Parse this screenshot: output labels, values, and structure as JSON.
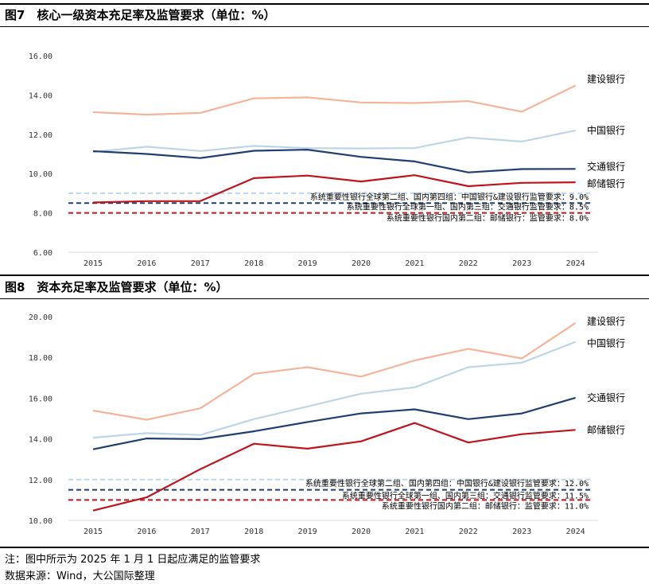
{
  "figures": [
    {
      "title": "图7　核心一级资本充足率及监管要求（单位：%）",
      "chart_data": {
        "type": "line",
        "title": "核心一级资本充足率及监管要求（单位：%）",
        "xlabel": "",
        "ylabel": "",
        "categories": [
          "2015",
          "2016",
          "2017",
          "2018",
          "2019",
          "2020",
          "2021",
          "2022",
          "2023",
          "2024"
        ],
        "ylim": [
          6,
          16
        ],
        "yticks": [
          "6.00",
          "8.00",
          "10.00",
          "12.00",
          "14.00",
          "16.00"
        ],
        "grid": false,
        "series": [
          {
            "name": "建设银行",
            "color": "#f5b49a",
            "values": [
              13.13,
              13.0,
              13.09,
              13.83,
              13.88,
              13.62,
              13.59,
              13.69,
              13.15,
              14.48
            ]
          },
          {
            "name": "中国银行",
            "color": "#bcd6e6",
            "values": [
              11.1,
              11.37,
              11.15,
              11.41,
              11.3,
              11.28,
              11.3,
              11.84,
              11.63,
              12.2
            ]
          },
          {
            "name": "交通银行",
            "color": "#1f3f73",
            "values": [
              11.14,
              11.0,
              10.79,
              11.16,
              11.22,
              10.85,
              10.62,
              10.06,
              10.23,
              10.24
            ]
          },
          {
            "name": "邮储银行",
            "color": "#c0141c",
            "values": [
              8.53,
              8.6,
              8.6,
              9.77,
              9.9,
              9.6,
              9.92,
              9.36,
              9.53,
              9.56
            ]
          }
        ],
        "requirements": [
          {
            "label": "系统重要性银行全球第二组、国内第四组：中国银行&建设银行监管要求：9.0%",
            "value": 9.0,
            "color": "#bcd6e6"
          },
          {
            "label": "系统重要性银行全球第一组、国内第三组：交通银行监管要求：8.5%",
            "value": 8.5,
            "color": "#1f3f73"
          },
          {
            "label": "系统重要性银行国内第二组：邮储银行：监管要求：8.0%",
            "value": 8.0,
            "color": "#c0141c"
          }
        ]
      }
    },
    {
      "title": "图8　资本充足率及监管要求（单位：%）",
      "chart_data": {
        "type": "line",
        "title": "资本充足率及监管要求（单位：%）",
        "xlabel": "",
        "ylabel": "",
        "categories": [
          "2015",
          "2016",
          "2017",
          "2018",
          "2019",
          "2020",
          "2021",
          "2022",
          "2023",
          "2024"
        ],
        "ylim": [
          10,
          20
        ],
        "yticks": [
          "10.00",
          "12.00",
          "14.00",
          "16.00",
          "18.00",
          "20.00"
        ],
        "grid": false,
        "series": [
          {
            "name": "建设银行",
            "color": "#f5b49a",
            "values": [
              15.39,
              14.94,
              15.5,
              17.19,
              17.52,
              17.06,
              17.85,
              18.42,
              17.95,
              19.69
            ]
          },
          {
            "name": "中国银行",
            "color": "#bcd6e6",
            "values": [
              14.06,
              14.28,
              14.19,
              14.97,
              15.59,
              16.22,
              16.53,
              17.52,
              17.74,
              18.76
            ]
          },
          {
            "name": "交通银行",
            "color": "#1f3f73",
            "values": [
              13.49,
              14.02,
              13.99,
              14.37,
              14.83,
              15.25,
              15.45,
              14.97,
              15.25,
              16.02
            ]
          },
          {
            "name": "邮储银行",
            "color": "#c0141c",
            "values": [
              10.48,
              11.13,
              12.51,
              13.76,
              13.52,
              13.88,
              14.78,
              13.82,
              14.23,
              14.44
            ]
          }
        ],
        "requirements": [
          {
            "label": "系统重要性银行全球第二组、国内第四组：中国银行&建设银行监管要求：12.0%",
            "value": 12.0,
            "color": "#bcd6e6"
          },
          {
            "label": "系统重要性银行全球第一组、国内第三组：交通银行监管要求：11.5%",
            "value": 11.5,
            "color": "#1f3f73"
          },
          {
            "label": "系统重要性银行国内第二组：邮储银行：监管要求：11.0%",
            "value": 11.0,
            "color": "#c0141c"
          }
        ]
      }
    }
  ],
  "notes": {
    "note": "注：图中所示为 2025 年 1 月 1 日起应满足的监管要求",
    "source": "数据来源：Wind，大公国际整理"
  }
}
